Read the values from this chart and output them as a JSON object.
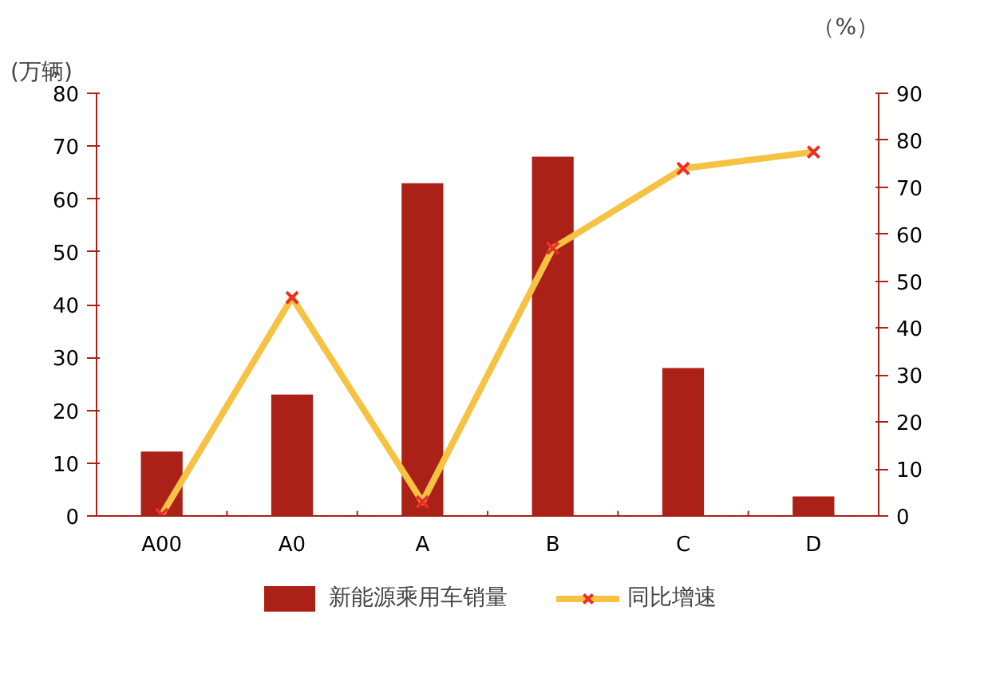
{
  "chart_data": {
    "type": "bar",
    "categories": [
      "A00",
      "A0",
      "A",
      "B",
      "C",
      "D"
    ],
    "series": [
      {
        "name": "新能源乘用车销量",
        "color": "#ab2118",
        "values": [
          12.2,
          23,
          63,
          68,
          28,
          3.7
        ]
      },
      {
        "name": "同比增速",
        "type": "line",
        "axis": "y2",
        "color": "#f5c242",
        "marker": "cross",
        "values": [
          0.3,
          46.5,
          3,
          57,
          74,
          77.5
        ]
      }
    ],
    "ylabel": "(万辆)",
    "y2label": "（%）",
    "ylim": [
      0,
      80
    ],
    "yticks": [
      0,
      10,
      20,
      30,
      40,
      50,
      60,
      70,
      80
    ],
    "y2lim": [
      0,
      90
    ],
    "y2ticks": [
      0,
      10,
      20,
      30,
      40,
      50,
      60,
      70,
      80,
      90
    ],
    "grid": false,
    "legend": "bottom"
  }
}
